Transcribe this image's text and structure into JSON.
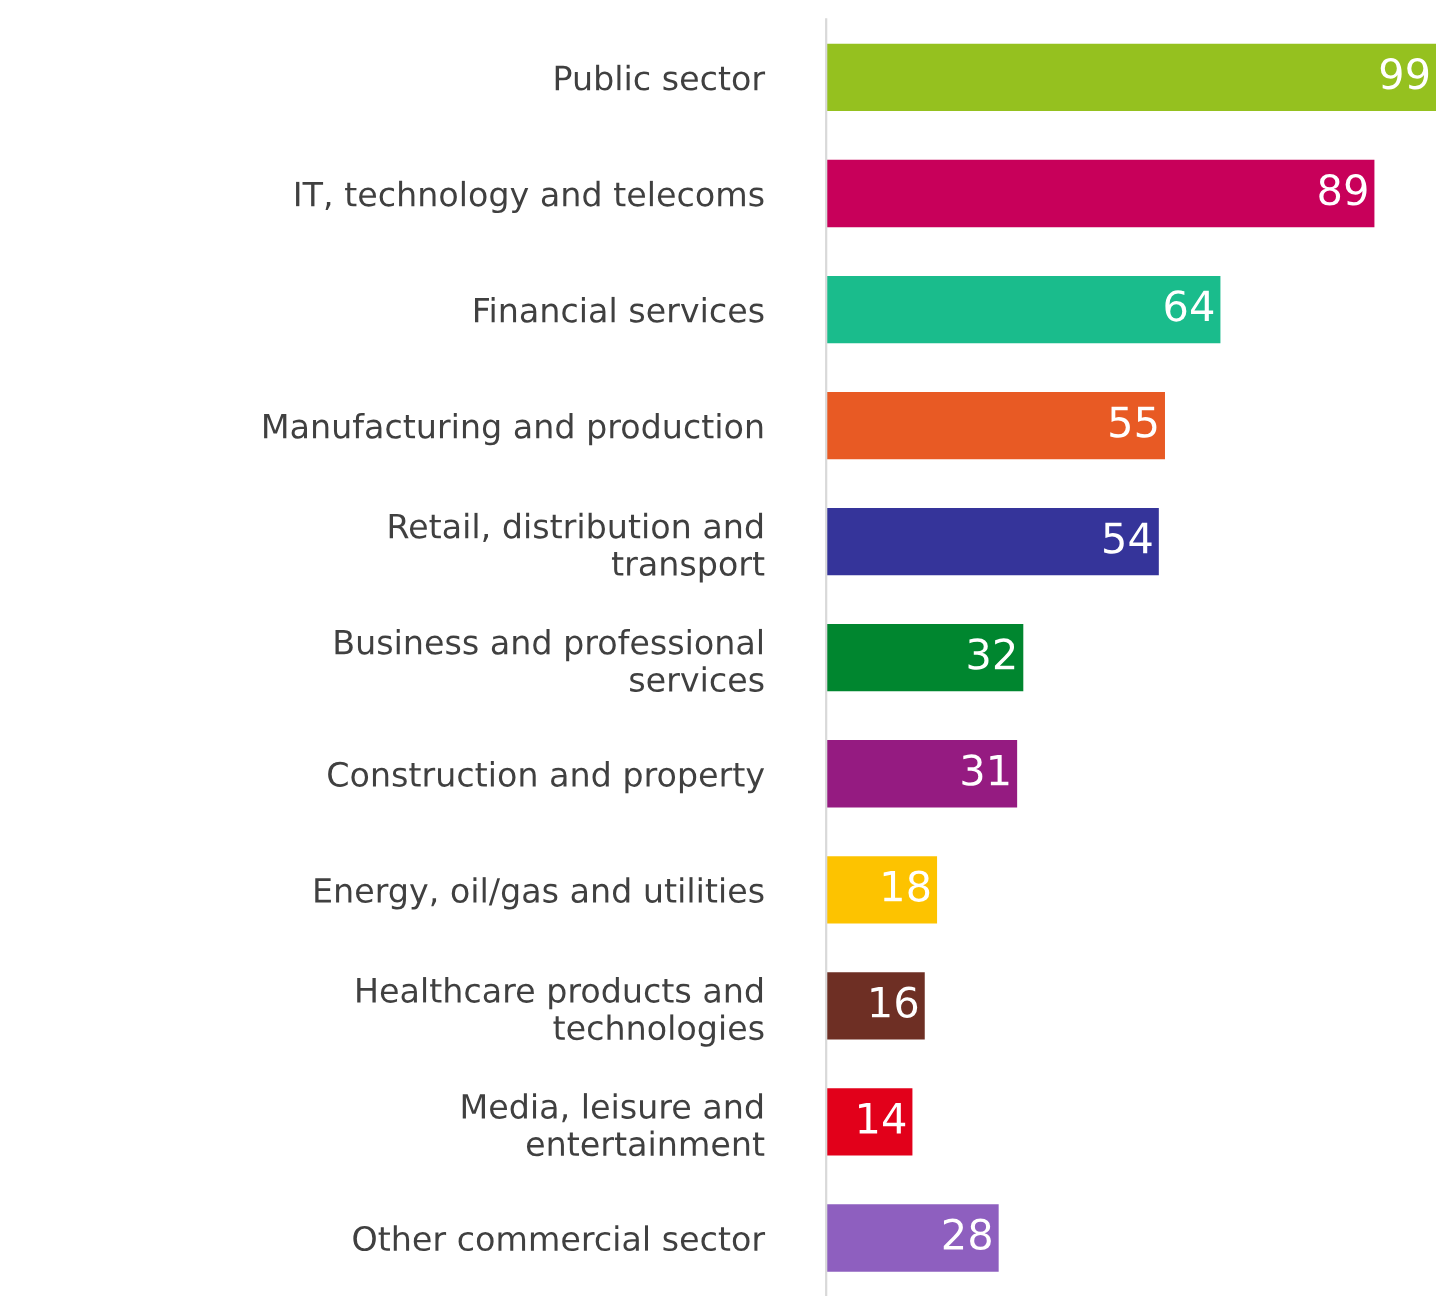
{
  "chart_data": {
    "type": "bar",
    "orientation": "horizontal",
    "data_labels": true,
    "grid": false,
    "legend": false,
    "categories": [
      "Public sector",
      "IT, technology and telecoms",
      "Financial services",
      "Manufacturing and production",
      "Retail, distribution and\ntransport",
      "Business and professional\nservices",
      "Construction and property",
      "Energy, oil/gas and utilities",
      "Healthcare products and\ntechnologies",
      "Media, leisure and\nentertainment",
      "Other commercial sector"
    ],
    "values": [
      99,
      89,
      64,
      55,
      54,
      32,
      31,
      18,
      16,
      14,
      28
    ],
    "colors": [
      "#95c11f",
      "#c8005a",
      "#1abc8c",
      "#e85a24",
      "#35349a",
      "#00862f",
      "#951b81",
      "#fdc300",
      "#6e2f24",
      "#e2001a",
      "#8e5fbf"
    ]
  }
}
